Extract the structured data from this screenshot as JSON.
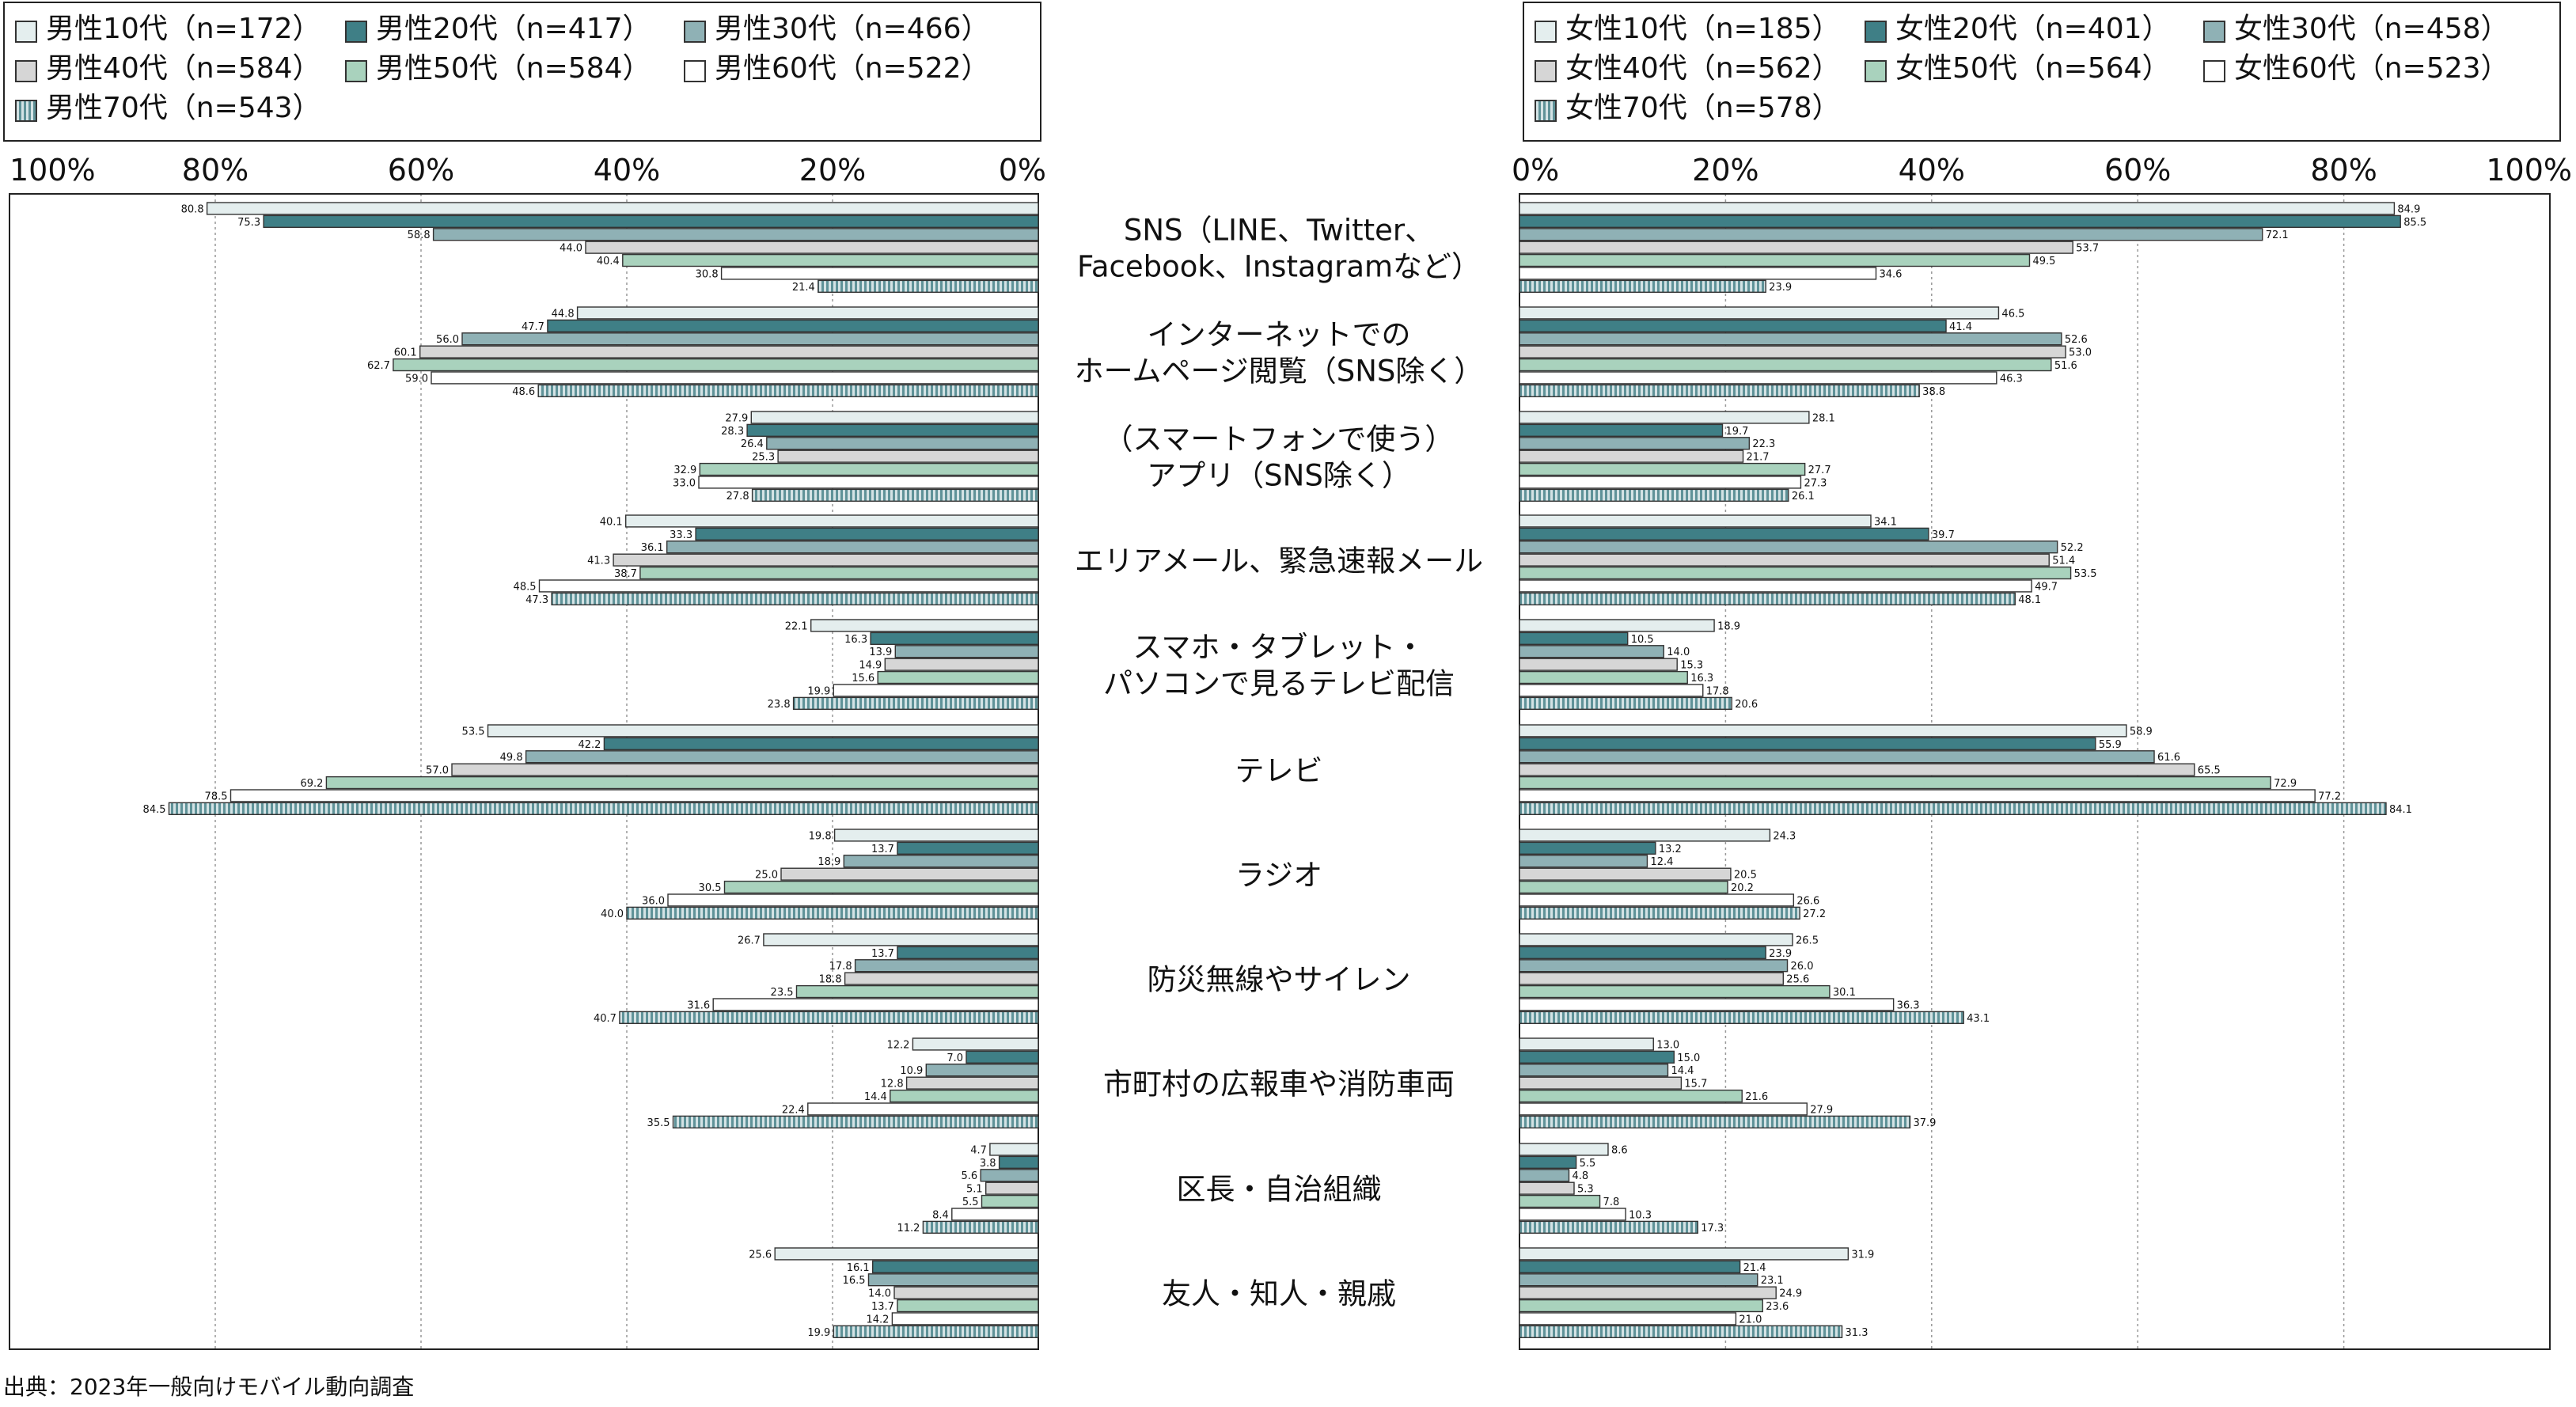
{
  "source": "出典：2023年一般向けモバイル動向調査",
  "chart_data": [
    {
      "type": "bar",
      "orientation": "horizontal-reversed",
      "panel": "male",
      "xlim": [
        0,
        100
      ],
      "x_ticks": [
        "0%",
        "20%",
        "40%",
        "60%",
        "80%",
        "100%"
      ],
      "grid": "vertical dotted",
      "legend_placement": "top",
      "categories": [
        "SNS（LINE、Twitter、Facebook、Instagramなど）",
        "インターネットでのホームページ閲覧（SNS除く）",
        "（スマートフォンで使う）アプリ（SNS除く）",
        "エリアメール、緊急速報メール",
        "スマホ・タブレット・パソコンで見るテレビ配信",
        "テレビ",
        "ラジオ",
        "防災無線やサイレン",
        "市町村の広報車や消防車両",
        "区長・自治組織",
        "友人・知人・親戚"
      ],
      "series": [
        {
          "name": "男性10代（n=172）",
          "color": "#e4eeee",
          "pattern": "solid",
          "values": [
            80.8,
            44.8,
            27.9,
            40.1,
            22.1,
            53.5,
            19.8,
            26.7,
            12.2,
            4.7,
            25.6
          ]
        },
        {
          "name": "男性20代（n=417）",
          "color": "#3f7f86",
          "pattern": "solid",
          "values": [
            75.3,
            47.7,
            28.3,
            33.3,
            16.3,
            42.2,
            13.7,
            13.7,
            7.0,
            3.8,
            16.1
          ]
        },
        {
          "name": "男性30代（n=466）",
          "color": "#8fb1b5",
          "pattern": "solid",
          "values": [
            58.8,
            56.0,
            26.4,
            36.1,
            13.9,
            49.8,
            18.9,
            17.8,
            10.9,
            5.6,
            16.5
          ]
        },
        {
          "name": "男性40代（n=584）",
          "color": "#d6d6d6",
          "pattern": "solid",
          "values": [
            44.0,
            60.1,
            25.3,
            41.3,
            14.9,
            57.0,
            25.0,
            18.8,
            12.8,
            5.1,
            14.0
          ]
        },
        {
          "name": "男性50代（n=584）",
          "color": "#a9d2bd",
          "pattern": "solid",
          "values": [
            40.4,
            62.7,
            32.9,
            38.7,
            15.6,
            69.2,
            30.5,
            23.5,
            14.4,
            5.5,
            13.7
          ]
        },
        {
          "name": "男性60代（n=522）",
          "color": "#ffffff",
          "pattern": "solid",
          "values": [
            30.8,
            59.0,
            33.0,
            48.5,
            19.9,
            78.5,
            36.0,
            31.6,
            22.4,
            8.4,
            14.2
          ]
        },
        {
          "name": "男性70代（n=543）",
          "color": "#8fb1b5",
          "pattern": "vertical-stripes",
          "values": [
            21.4,
            48.6,
            27.8,
            47.3,
            23.8,
            84.5,
            40.0,
            40.7,
            35.5,
            11.2,
            19.9
          ]
        }
      ]
    },
    {
      "type": "bar",
      "orientation": "horizontal",
      "panel": "female",
      "xlim": [
        0,
        100
      ],
      "x_ticks": [
        "0%",
        "20%",
        "40%",
        "60%",
        "80%",
        "100%"
      ],
      "grid": "vertical dotted",
      "legend_placement": "top",
      "series": [
        {
          "name": "女性10代（n=185）",
          "color": "#e4eeee",
          "pattern": "solid",
          "values": [
            84.9,
            46.5,
            28.1,
            34.1,
            18.9,
            58.9,
            24.3,
            26.5,
            13.0,
            8.6,
            31.9
          ]
        },
        {
          "name": "女性20代（n=401）",
          "color": "#3f7f86",
          "pattern": "solid",
          "values": [
            85.5,
            41.4,
            19.7,
            39.7,
            10.5,
            55.9,
            13.2,
            23.9,
            15.0,
            5.5,
            21.4
          ]
        },
        {
          "name": "女性30代（n=458）",
          "color": "#8fb1b5",
          "pattern": "solid",
          "values": [
            72.1,
            52.6,
            22.3,
            52.2,
            14.0,
            61.6,
            12.4,
            26.0,
            14.4,
            4.8,
            23.1
          ]
        },
        {
          "name": "女性40代（n=562）",
          "color": "#d6d6d6",
          "pattern": "solid",
          "values": [
            53.7,
            53.0,
            21.7,
            51.4,
            15.3,
            65.5,
            20.5,
            25.6,
            15.7,
            5.3,
            24.9
          ]
        },
        {
          "name": "女性50代（n=564）",
          "color": "#a9d2bd",
          "pattern": "solid",
          "values": [
            49.5,
            51.6,
            27.7,
            53.5,
            16.3,
            72.9,
            20.2,
            30.1,
            21.6,
            7.8,
            23.6
          ]
        },
        {
          "name": "女性60代（n=523）",
          "color": "#ffffff",
          "pattern": "solid",
          "values": [
            34.6,
            46.3,
            27.3,
            49.7,
            17.8,
            77.2,
            26.6,
            36.3,
            27.9,
            10.3,
            21.0
          ]
        },
        {
          "name": "女性70代（n=578）",
          "color": "#8fb1b5",
          "pattern": "vertical-stripes",
          "values": [
            23.9,
            38.8,
            26.1,
            48.1,
            20.6,
            84.1,
            27.2,
            43.1,
            37.9,
            17.3,
            31.3
          ]
        }
      ]
    }
  ]
}
